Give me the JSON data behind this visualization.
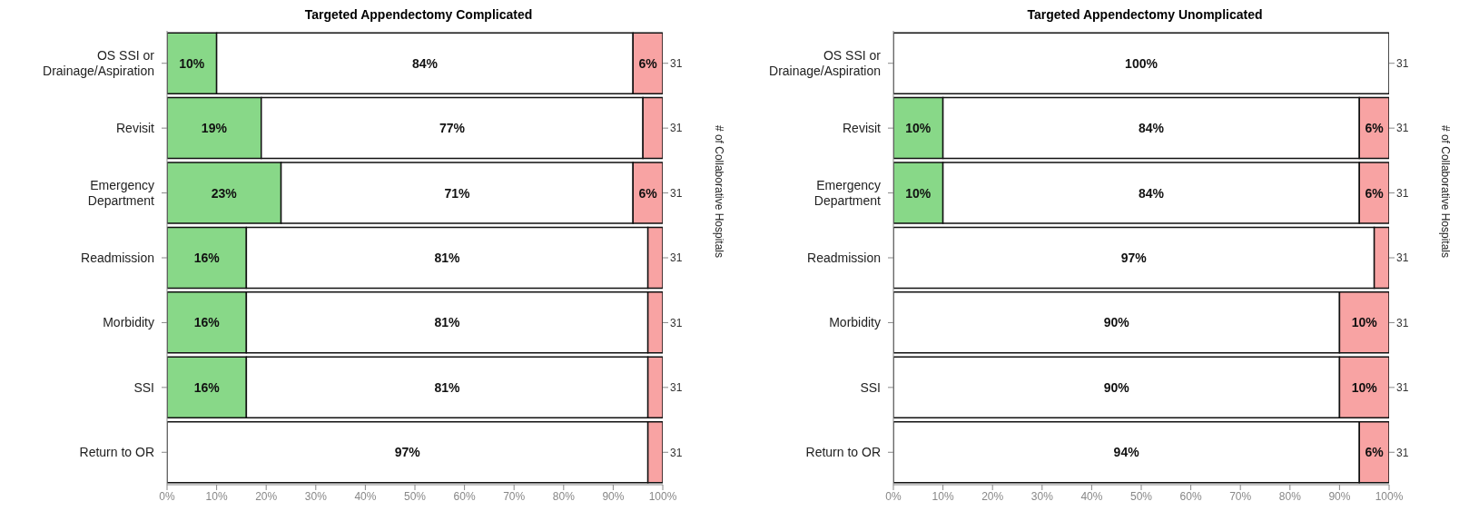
{
  "chart_data": [
    {
      "type": "bar",
      "title": "Targeted Appendectomy Complicated",
      "orientation": "horizontal",
      "stacked": true,
      "categories": [
        "OS SSI or\nDrainage/Aspiration",
        "Revisit",
        "Emergency\nDepartment",
        "Readmission",
        "Morbidity",
        "SSI",
        "Return to OR"
      ],
      "y2_categories": [
        "31",
        "31",
        "31",
        "31",
        "31",
        "31",
        "31"
      ],
      "y2label": "# of Collaborative Hospitals",
      "xlim": [
        0,
        100
      ],
      "xticks": [
        {
          "value": 0,
          "label": "0%"
        },
        {
          "value": 10,
          "label": "10%"
        },
        {
          "value": 20,
          "label": "20%"
        },
        {
          "value": 30,
          "label": "30%"
        },
        {
          "value": 40,
          "label": "40%"
        },
        {
          "value": 50,
          "label": "50%"
        },
        {
          "value": 60,
          "label": "60%"
        },
        {
          "value": 70,
          "label": "70%"
        },
        {
          "value": 80,
          "label": "80%"
        },
        {
          "value": 90,
          "label": "90%"
        },
        {
          "value": 100,
          "label": "100%"
        }
      ],
      "grid": false,
      "legend": false,
      "series": [
        {
          "color": "#88d888",
          "values": [
            10,
            19,
            23,
            16,
            16,
            16,
            0
          ],
          "value_labels": [
            "10%",
            "19%",
            "23%",
            "16%",
            "16%",
            "16%",
            null
          ]
        },
        {
          "color": "#ffffff",
          "values": [
            84,
            77,
            71,
            81,
            81,
            81,
            97
          ],
          "value_labels": [
            "84%",
            "77%",
            "71%",
            "81%",
            "81%",
            "81%",
            "97%"
          ]
        },
        {
          "color": "#f8a3a3",
          "values": [
            6,
            4,
            6,
            3,
            3,
            3,
            3
          ],
          "value_labels": [
            "6%",
            null,
            "6%",
            null,
            null,
            null,
            null
          ]
        }
      ]
    },
    {
      "type": "bar",
      "title": "Targeted Appendectomy Unomplicated",
      "orientation": "horizontal",
      "stacked": true,
      "categories": [
        "OS SSI or\nDrainage/Aspiration",
        "Revisit",
        "Emergency\nDepartment",
        "Readmission",
        "Morbidity",
        "SSI",
        "Return to OR"
      ],
      "y2_categories": [
        "31",
        "31",
        "31",
        "31",
        "31",
        "31",
        "31"
      ],
      "y2label": "# of Collaborative Hospitals",
      "xlim": [
        0,
        100
      ],
      "xticks": [
        {
          "value": 0,
          "label": "0%"
        },
        {
          "value": 10,
          "label": "10%"
        },
        {
          "value": 20,
          "label": "20%"
        },
        {
          "value": 30,
          "label": "30%"
        },
        {
          "value": 40,
          "label": "40%"
        },
        {
          "value": 50,
          "label": "50%"
        },
        {
          "value": 60,
          "label": "60%"
        },
        {
          "value": 70,
          "label": "70%"
        },
        {
          "value": 80,
          "label": "80%"
        },
        {
          "value": 90,
          "label": "90%"
        },
        {
          "value": 100,
          "label": "100%"
        }
      ],
      "grid": false,
      "legend": false,
      "series": [
        {
          "color": "#88d888",
          "values": [
            0,
            10,
            10,
            0,
            0,
            0,
            0
          ],
          "value_labels": [
            null,
            "10%",
            "10%",
            null,
            null,
            null,
            null
          ]
        },
        {
          "color": "#ffffff",
          "values": [
            100,
            84,
            84,
            97,
            90,
            90,
            94
          ],
          "value_labels": [
            "100%",
            "84%",
            "84%",
            "97%",
            "90%",
            "90%",
            "94%"
          ]
        },
        {
          "color": "#f8a3a3",
          "values": [
            0,
            6,
            6,
            3,
            10,
            10,
            6
          ],
          "value_labels": [
            null,
            "6%",
            "6%",
            null,
            "10%",
            "10%",
            "6%"
          ]
        }
      ]
    }
  ]
}
